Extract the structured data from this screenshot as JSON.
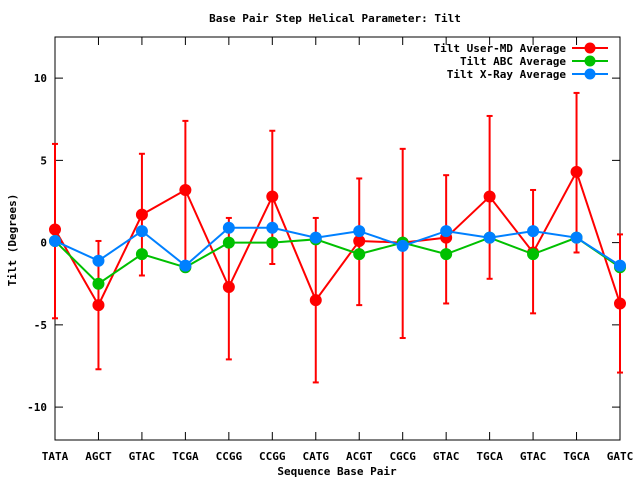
{
  "chart_data": {
    "type": "line",
    "title": "Base Pair Step Helical Parameter: Tilt",
    "xlabel": "Sequence Base Pair",
    "ylabel": "Tilt (Degrees)",
    "categories": [
      "TATA",
      "AGCT",
      "GTAC",
      "TCGA",
      "CCGG",
      "CCGG",
      "CATG",
      "ACGT",
      "CGCG",
      "GTAC",
      "TGCA",
      "GTAC",
      "TGCA",
      "GATC"
    ],
    "ylim": [
      -12,
      12.5
    ],
    "yticks": [
      -10,
      -5,
      0,
      5,
      10
    ],
    "ytick_labels": [
      "-10",
      "-5",
      "0",
      "5",
      "10"
    ],
    "grid": false,
    "legend_position": "top-right",
    "series": [
      {
        "name": "Tilt User-MD Average",
        "color": "#ff0000",
        "values": [
          0.8,
          -3.8,
          1.7,
          3.2,
          -2.7,
          2.8,
          -3.5,
          0.1,
          0.0,
          0.3,
          2.8,
          -0.6,
          4.3,
          -3.7
        ],
        "error_low": [
          -4.6,
          -7.7,
          -2.0,
          -1.4,
          -7.1,
          -1.3,
          -8.5,
          -3.8,
          -5.8,
          -3.7,
          -2.2,
          -4.3,
          -0.6,
          -7.9
        ],
        "error_high": [
          6.0,
          0.1,
          5.4,
          7.4,
          1.5,
          6.8,
          1.5,
          3.9,
          5.7,
          4.1,
          7.7,
          3.2,
          9.1,
          0.5
        ]
      },
      {
        "name": "Tilt ABC Average",
        "color": "#00c000",
        "values": [
          0.1,
          -2.5,
          -0.7,
          -1.5,
          0.0,
          0.0,
          0.2,
          -0.7,
          0.0,
          -0.7,
          0.3,
          -0.7,
          0.3,
          -1.5
        ]
      },
      {
        "name": "Tilt X-Ray Average",
        "color": "#0080ff",
        "values": [
          0.1,
          -1.1,
          0.7,
          -1.4,
          0.9,
          0.9,
          0.3,
          0.7,
          -0.2,
          0.7,
          0.3,
          0.7,
          0.3,
          -1.4
        ]
      }
    ]
  }
}
